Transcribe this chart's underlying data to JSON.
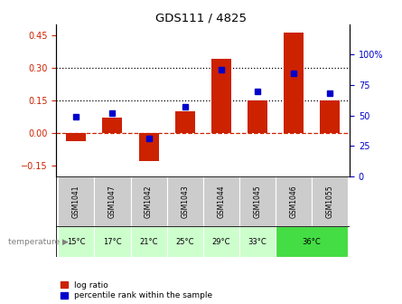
{
  "title": "GDS111 / 4825",
  "samples": [
    "GSM1041",
    "GSM1047",
    "GSM1042",
    "GSM1043",
    "GSM1044",
    "GSM1045",
    "GSM1046",
    "GSM1055"
  ],
  "log_ratio": [
    -0.04,
    0.07,
    -0.13,
    0.1,
    0.34,
    0.15,
    0.46,
    0.15
  ],
  "percentile": [
    49,
    52,
    31,
    57,
    88,
    70,
    85,
    68
  ],
  "temp_groups": [
    {
      "label": "15°C",
      "count": 1,
      "color": "#ccffcc"
    },
    {
      "label": "17°C",
      "count": 1,
      "color": "#ccffcc"
    },
    {
      "label": "21°C",
      "count": 1,
      "color": "#ccffcc"
    },
    {
      "label": "25°C",
      "count": 1,
      "color": "#ccffcc"
    },
    {
      "label": "29°C",
      "count": 1,
      "color": "#ccffcc"
    },
    {
      "label": "33°C",
      "count": 1,
      "color": "#ccffcc"
    },
    {
      "label": "36°C",
      "count": 2,
      "color": "#44dd44"
    }
  ],
  "ylim_left": [
    -0.2,
    0.5
  ],
  "ylim_right": [
    0,
    125
  ],
  "yticks_left": [
    -0.15,
    0.0,
    0.15,
    0.3,
    0.45
  ],
  "yticks_right": [
    0,
    25,
    50,
    75,
    100
  ],
  "bar_color": "#cc2200",
  "dot_color": "#0000cc",
  "zero_line_color": "#cc2200",
  "dotted_line_color": "#000000",
  "gsm_bg_color": "#cccccc",
  "legend_bar_label": "log ratio",
  "legend_dot_label": "percentile rank within the sample",
  "temp_label": "temperature"
}
